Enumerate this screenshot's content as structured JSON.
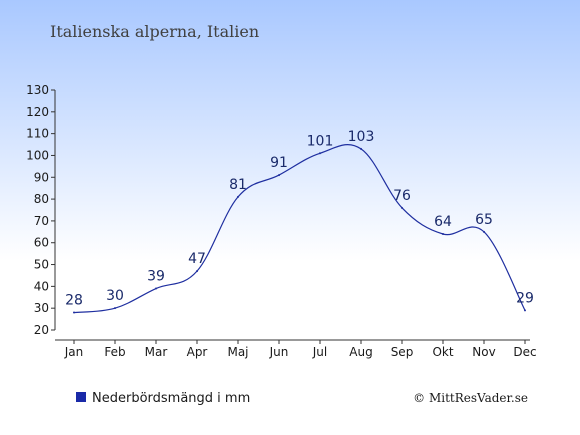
{
  "chart_data": {
    "type": "line",
    "title": "Italienska alperna, Italien",
    "categories": [
      "Jan",
      "Feb",
      "Mar",
      "Apr",
      "Maj",
      "Jun",
      "Jul",
      "Aug",
      "Sep",
      "Okt",
      "Nov",
      "Dec"
    ],
    "series": [
      {
        "name": "Nederbördsmängd i mm",
        "values": [
          28,
          30,
          39,
          47,
          81,
          91,
          101,
          103,
          76,
          64,
          65,
          29
        ]
      }
    ],
    "ylim": [
      20,
      130
    ],
    "yticks": [
      20,
      30,
      40,
      50,
      60,
      70,
      80,
      90,
      100,
      110,
      120,
      130
    ],
    "grid": false,
    "legend_placement": "bottom-left",
    "colors": {
      "line": "#1f2fa0",
      "legend_marker": "#1a2aa8",
      "background_top": "#a9c8ff",
      "background_bottom": "#ffffff"
    }
  },
  "legend": {
    "label": "Nederbördsmängd i mm"
  },
  "credit": "© MittResVader.se"
}
